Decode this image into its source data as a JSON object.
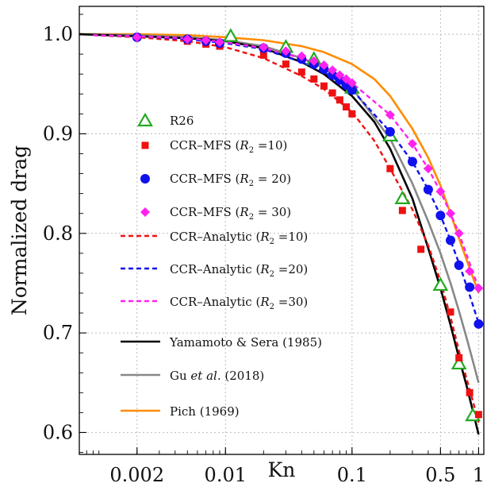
{
  "chart_data": {
    "type": "line",
    "title": "",
    "xlabel": "Kn",
    "ylabel": "Normalized drag",
    "xscale": "log",
    "xlim": [
      0.0007,
      1.1
    ],
    "ylim": [
      0.578,
      1.028
    ],
    "grid": true,
    "legend_position": "left-center",
    "x_ticks": [
      {
        "value": 0.002,
        "label": "0.002"
      },
      {
        "value": 0.01,
        "label": "0.01"
      },
      {
        "value": 0.1,
        "label": "0.1"
      },
      {
        "value": 0.5,
        "label": "0.5"
      },
      {
        "value": 1,
        "label": "1"
      }
    ],
    "y_ticks": [
      {
        "value": 0.6,
        "label": "0.6"
      },
      {
        "value": 0.7,
        "label": "0.7"
      },
      {
        "value": 0.8,
        "label": "0.8"
      },
      {
        "value": 0.9,
        "label": "0.9"
      },
      {
        "value": 1.0,
        "label": "1.0"
      }
    ],
    "series": [
      {
        "name": "R26",
        "kind": "marker",
        "marker": "triangle",
        "color": "#22aa22",
        "x": [
          0.011,
          0.03,
          0.05,
          0.1,
          0.2,
          0.25,
          0.5,
          0.7,
          0.9
        ],
        "y": [
          0.998,
          0.987,
          0.975,
          0.946,
          0.898,
          0.835,
          0.748,
          0.669,
          0.617
        ]
      },
      {
        "name": "CCR–MFS (R₂ =10)",
        "name_main": "CCR–MFS",
        "name_param": "(R₂ =10)",
        "kind": "marker",
        "marker": "square",
        "color": "#ee1111",
        "x": [
          0.002,
          0.005,
          0.007,
          0.009,
          0.02,
          0.03,
          0.04,
          0.05,
          0.06,
          0.07,
          0.08,
          0.09,
          0.1,
          0.2,
          0.25,
          0.35,
          0.6,
          0.7,
          0.85,
          1.0
        ],
        "y": [
          0.997,
          0.993,
          0.99,
          0.988,
          0.979,
          0.97,
          0.962,
          0.955,
          0.948,
          0.941,
          0.934,
          0.927,
          0.92,
          0.865,
          0.823,
          0.784,
          0.721,
          0.675,
          0.64,
          0.618
        ]
      },
      {
        "name": "CCR–MFS (R₂ = 20)",
        "name_main": "CCR–MFS",
        "name_param": "(R₂ = 20)",
        "kind": "marker",
        "marker": "circle",
        "color": "#1111ee",
        "x": [
          0.002,
          0.005,
          0.007,
          0.009,
          0.02,
          0.03,
          0.04,
          0.05,
          0.06,
          0.07,
          0.08,
          0.09,
          0.1,
          0.2,
          0.3,
          0.4,
          0.5,
          0.6,
          0.7,
          0.85,
          1.0
        ],
        "y": [
          0.997,
          0.995,
          0.993,
          0.991,
          0.986,
          0.981,
          0.975,
          0.97,
          0.965,
          0.959,
          0.954,
          0.949,
          0.944,
          0.902,
          0.872,
          0.844,
          0.818,
          0.793,
          0.768,
          0.746,
          0.709
        ]
      },
      {
        "name": "CCR–MFS (R₂ = 30)",
        "name_main": "CCR–MFS",
        "name_param": "(R₂ = 30)",
        "kind": "marker",
        "marker": "diamond",
        "color": "#ff22ee",
        "x": [
          0.002,
          0.005,
          0.007,
          0.009,
          0.02,
          0.03,
          0.04,
          0.05,
          0.06,
          0.07,
          0.08,
          0.09,
          0.1,
          0.2,
          0.3,
          0.4,
          0.5,
          0.6,
          0.7,
          0.85,
          1.0
        ],
        "y": [
          0.997,
          0.995,
          0.994,
          0.992,
          0.987,
          0.983,
          0.978,
          0.973,
          0.969,
          0.964,
          0.959,
          0.955,
          0.951,
          0.919,
          0.89,
          0.865,
          0.842,
          0.82,
          0.8,
          0.762,
          0.745
        ]
      },
      {
        "name": "CCR–Analytic (R₂ =10)",
        "name_main": "CCR–Analytic",
        "name_param": "(R₂ =10)",
        "kind": "line",
        "dash": "dashed",
        "color": "#ee1111",
        "x": [
          0.0009,
          0.002,
          0.005,
          0.01,
          0.02,
          0.04,
          0.06,
          0.1,
          0.15,
          0.2,
          0.3,
          0.4,
          0.5,
          0.6,
          0.7,
          0.8,
          0.9,
          1.0
        ],
        "y": [
          0.999,
          0.997,
          0.993,
          0.987,
          0.976,
          0.958,
          0.945,
          0.922,
          0.893,
          0.865,
          0.824,
          0.788,
          0.752,
          0.716,
          0.682,
          0.655,
          0.632,
          0.61
        ]
      },
      {
        "name": "CCR–Analytic (R₂ =20)",
        "name_main": "CCR–Analytic",
        "name_param": "(R₂ =20)",
        "kind": "line",
        "dash": "dashed",
        "color": "#1111ee",
        "x": [
          0.0009,
          0.002,
          0.005,
          0.01,
          0.02,
          0.04,
          0.06,
          0.1,
          0.2,
          0.3,
          0.4,
          0.5,
          0.6,
          0.7,
          0.85,
          1.0
        ],
        "y": [
          0.999,
          0.998,
          0.995,
          0.991,
          0.985,
          0.972,
          0.962,
          0.944,
          0.902,
          0.872,
          0.844,
          0.818,
          0.793,
          0.77,
          0.738,
          0.71
        ]
      },
      {
        "name": "CCR–Analytic (R₂ =30)",
        "name_main": "CCR–Analytic",
        "name_param": "(R₂ =30)",
        "kind": "line",
        "dash": "dashed",
        "color": "#ff22ee",
        "x": [
          0.0009,
          0.002,
          0.005,
          0.01,
          0.02,
          0.04,
          0.06,
          0.1,
          0.2,
          0.3,
          0.4,
          0.5,
          0.6,
          0.7,
          0.85,
          1.0
        ],
        "y": [
          0.999,
          0.998,
          0.996,
          0.992,
          0.986,
          0.976,
          0.967,
          0.951,
          0.919,
          0.89,
          0.865,
          0.842,
          0.82,
          0.8,
          0.77,
          0.745
        ]
      },
      {
        "name": "Yamamoto & Sera (1985)",
        "kind": "line",
        "dash": "solid",
        "color": "#000000",
        "x": [
          0.0007,
          0.002,
          0.005,
          0.01,
          0.02,
          0.04,
          0.06,
          0.1,
          0.15,
          0.2,
          0.3,
          0.4,
          0.5,
          0.6,
          0.7,
          0.8,
          0.9,
          1.0
        ],
        "y": [
          1.0,
          0.998,
          0.996,
          0.993,
          0.986,
          0.972,
          0.96,
          0.938,
          0.912,
          0.885,
          0.835,
          0.785,
          0.745,
          0.708,
          0.675,
          0.648,
          0.622,
          0.598
        ]
      },
      {
        "name": "Gu et al. (2018)",
        "name_main": "Gu",
        "name_em": "et al.",
        "name_tail": "(2018)",
        "kind": "line",
        "dash": "solid",
        "color": "#888888",
        "x": [
          0.0007,
          0.002,
          0.005,
          0.01,
          0.02,
          0.04,
          0.06,
          0.1,
          0.2,
          0.3,
          0.4,
          0.5,
          0.6,
          0.7,
          0.8,
          0.9,
          1.0
        ],
        "y": [
          1.0,
          0.999,
          0.997,
          0.994,
          0.988,
          0.976,
          0.966,
          0.946,
          0.895,
          0.85,
          0.812,
          0.78,
          0.75,
          0.722,
          0.696,
          0.672,
          0.65
        ]
      },
      {
        "name": "Pich (1969)",
        "kind": "line",
        "dash": "solid",
        "color": "#ff8c00",
        "x": [
          0.0007,
          0.002,
          0.005,
          0.01,
          0.02,
          0.04,
          0.06,
          0.1,
          0.15,
          0.2,
          0.3,
          0.4,
          0.5,
          0.6,
          0.7,
          0.85,
          1.0
        ],
        "y": [
          1.0,
          1.0,
          0.999,
          0.997,
          0.994,
          0.988,
          0.982,
          0.97,
          0.955,
          0.938,
          0.905,
          0.876,
          0.848,
          0.82,
          0.795,
          0.765,
          0.74
        ]
      }
    ]
  }
}
